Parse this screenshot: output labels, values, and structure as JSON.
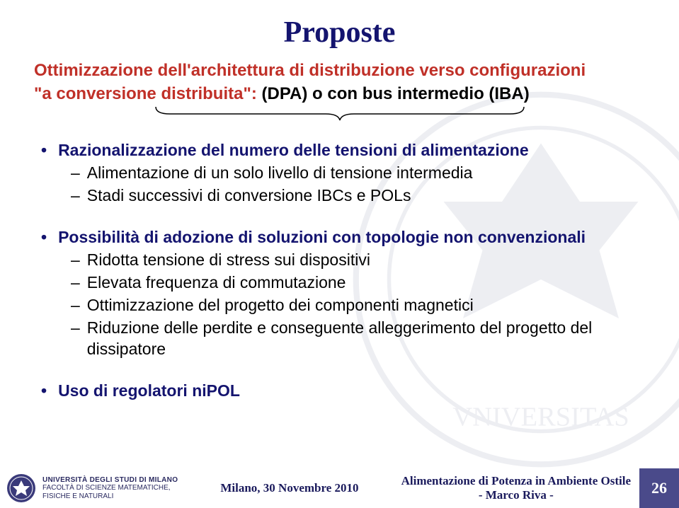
{
  "colors": {
    "title": "#14146f",
    "subtitle": "#c03028",
    "topBulletBold": "#14146f",
    "subItem": "#000000",
    "footerBlue": "#1a1a5c",
    "pageNumBg": "#4a4a8a",
    "pageNumText": "#ffffff",
    "uniText": "#2a2a60"
  },
  "title": "Proposte",
  "subtitleLine1": "Ottimizzazione dell'architettura di distribuzione verso configurazioni",
  "subtitleLine2_pre": "\"a conversione distribuita\": ",
  "subtitleLine2_dpa": "(DPA) o con bus intermedio (IBA)",
  "bullets": [
    {
      "label": "Razionalizzazione del numero delle tensioni di alimentazione",
      "subs": [
        "Alimentazione di un solo livello di tensione intermedia",
        "Stadi successivi di conversione IBCs e POLs"
      ]
    },
    {
      "label": "Possibilità di adozione di soluzioni con topologie non convenzionali",
      "subs": [
        "Ridotta tensione di stress sui dispositivi",
        "Elevata frequenza di commutazione",
        "Ottimizzazione del progetto dei componenti magnetici",
        "Riduzione delle perdite e conseguente alleggerimento del progetto del dissipatore"
      ]
    },
    {
      "label": "Uso di regolatori niPOL",
      "subs": []
    }
  ],
  "footer": {
    "uniMain": "UNIVERSITÀ DEGLI STUDI DI MILANO",
    "uniSub": "FACOLTÀ DI SCIENZE MATEMATICHE,\nFISICHE E NATURALI",
    "location": "Milano, 30 Novembre 2010",
    "rightLine1": "Alimentazione di Potenza in Ambiente Ostile",
    "rightLine2": "- Marco Riva -",
    "pageNum": "26"
  }
}
